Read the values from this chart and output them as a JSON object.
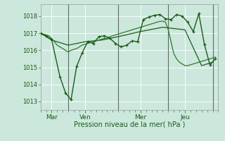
{
  "xlabel": "Pression niveau de la mer( hPa )",
  "bg_color": "#cce8dc",
  "grid_color": "#b0d8c8",
  "line_color1": "#1a5c1a",
  "line_color2": "#2d7a2d",
  "ylim": [
    1012.5,
    1018.7
  ],
  "yticks": [
    1013,
    1014,
    1015,
    1016,
    1017,
    1018
  ],
  "xlim": [
    0,
    64
  ],
  "day_positions": [
    4,
    16,
    36,
    52
  ],
  "day_labels": [
    "Mar",
    "Ven",
    "Mer",
    "Jeu"
  ],
  "vline_positions": [
    10,
    28,
    46,
    62
  ],
  "series1_x": [
    0,
    1,
    2,
    3,
    4,
    5,
    6,
    7,
    8,
    9,
    10,
    11,
    12,
    13,
    14,
    15,
    16,
    17,
    18,
    19,
    20,
    21,
    22,
    23,
    24,
    25,
    26,
    27,
    28,
    29,
    30,
    31,
    32,
    33,
    34,
    35,
    36,
    37,
    38,
    39,
    40,
    41,
    42,
    43,
    44,
    45,
    46,
    47,
    48,
    49,
    50,
    51,
    52,
    53,
    54,
    55,
    56,
    57,
    58,
    59,
    60,
    61,
    62,
    63
  ],
  "series1_y": [
    1017.0,
    1016.95,
    1016.9,
    1016.85,
    1016.7,
    1016.5,
    1016.3,
    1016.2,
    1016.1,
    1016.0,
    1015.9,
    1016.0,
    1016.05,
    1016.1,
    1016.2,
    1016.3,
    1016.35,
    1016.4,
    1016.45,
    1016.5,
    1016.55,
    1016.6,
    1016.65,
    1016.7,
    1016.7,
    1016.8,
    1016.85,
    1016.9,
    1016.95,
    1017.0,
    1017.05,
    1017.1,
    1017.15,
    1017.2,
    1017.25,
    1017.3,
    1017.35,
    1017.4,
    1017.45,
    1017.5,
    1017.55,
    1017.6,
    1017.65,
    1017.7,
    1017.7,
    1017.65,
    1017.2,
    1016.5,
    1015.8,
    1015.5,
    1015.3,
    1015.2,
    1015.1,
    1015.1,
    1015.15,
    1015.2,
    1015.25,
    1015.3,
    1015.35,
    1015.4,
    1015.45,
    1015.5,
    1015.55,
    1015.6
  ],
  "series2_x": [
    0,
    2,
    4,
    7,
    9,
    11,
    13,
    15,
    17,
    19,
    21,
    23,
    25,
    27,
    29,
    31,
    33,
    35,
    37,
    39,
    41,
    43,
    45,
    47,
    49,
    51,
    53,
    55,
    57,
    59,
    61,
    63
  ],
  "series2_y": [
    1017.0,
    1016.85,
    1016.63,
    1014.45,
    1013.5,
    1013.1,
    1015.05,
    1015.85,
    1016.5,
    1016.4,
    1016.8,
    1016.85,
    1016.7,
    1016.4,
    1016.2,
    1016.3,
    1016.55,
    1016.5,
    1017.8,
    1017.95,
    1018.05,
    1018.1,
    1017.85,
    1017.8,
    1018.1,
    1018.0,
    1017.65,
    1017.1,
    1018.15,
    1016.35,
    1015.15,
    1015.5
  ],
  "series3_x": [
    0,
    4,
    10,
    16,
    22,
    28,
    36,
    44,
    52,
    58,
    62
  ],
  "series3_y": [
    1017.0,
    1016.6,
    1016.3,
    1016.5,
    1016.6,
    1016.8,
    1017.1,
    1017.35,
    1017.2,
    1015.1,
    1015.3
  ]
}
